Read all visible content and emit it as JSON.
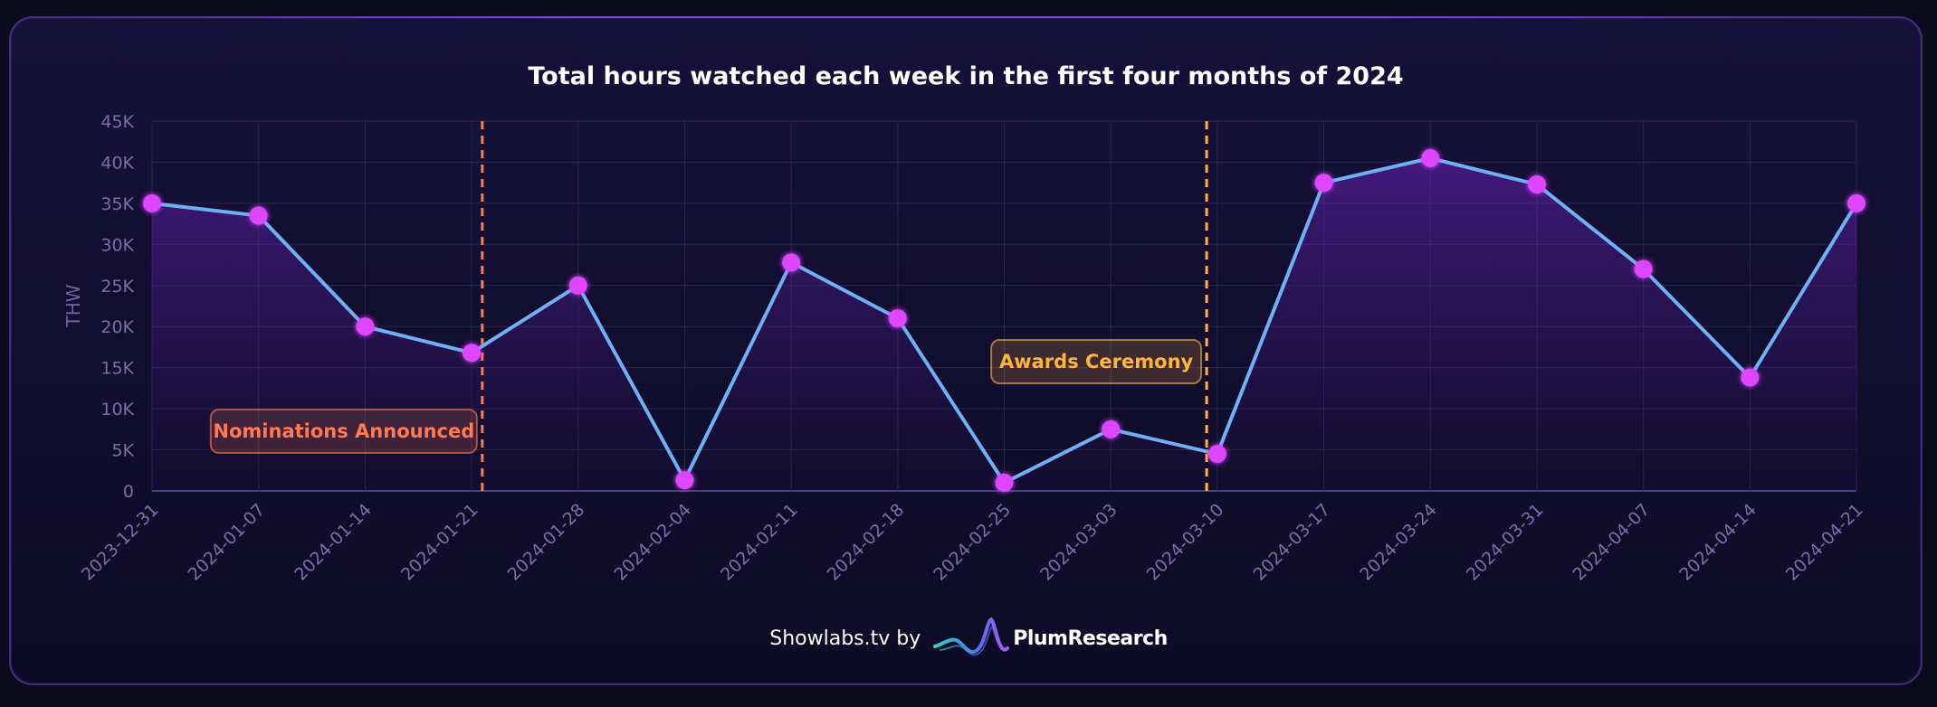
{
  "chart_data": {
    "type": "line",
    "title": "Total hours watched each week in the first four months of 2024",
    "xlabel": "",
    "ylabel": "THW",
    "ylim": [
      0,
      45000
    ],
    "yticks": [
      {
        "value": 0,
        "label": "0"
      },
      {
        "value": 5000,
        "label": "5K"
      },
      {
        "value": 10000,
        "label": "10K"
      },
      {
        "value": 15000,
        "label": "15K"
      },
      {
        "value": 20000,
        "label": "20K"
      },
      {
        "value": 25000,
        "label": "25K"
      },
      {
        "value": 30000,
        "label": "30K"
      },
      {
        "value": 35000,
        "label": "35K"
      },
      {
        "value": 40000,
        "label": "40K"
      },
      {
        "value": 45000,
        "label": "45K"
      }
    ],
    "categories": [
      "2023-12-31",
      "2024-01-07",
      "2024-01-14",
      "2024-01-21",
      "2024-01-28",
      "2024-02-04",
      "2024-02-11",
      "2024-02-18",
      "2024-02-25",
      "2024-03-03",
      "2024-03-10",
      "2024-03-17",
      "2024-03-24",
      "2024-03-31",
      "2024-04-07",
      "2024-04-14",
      "2024-04-21"
    ],
    "series": [
      {
        "name": "THW",
        "values": [
          35000,
          33500,
          20000,
          16800,
          25000,
          1300,
          27800,
          21000,
          1000,
          7500,
          4500,
          37500,
          40500,
          37300,
          27000,
          13800,
          35000
        ]
      }
    ],
    "annotations": [
      {
        "label": "Nominations Announced",
        "x_position": 3.1,
        "color": "#ff7a50"
      },
      {
        "label": "Awards Ceremony",
        "x_position": 9.9,
        "color": "#ffb43c"
      }
    ],
    "grid": true
  },
  "colors": {
    "line": "#6fb0f5",
    "marker": "#dd44ff",
    "area": "#5a1fa0",
    "grid": "#2a2450",
    "axis_text": "#7a6ea8",
    "title": "#ffffff"
  },
  "footer": {
    "text": "Showlabs.tv by",
    "logo_name": "PlumResearch",
    "logo_icon": "plum-wave-icon"
  }
}
